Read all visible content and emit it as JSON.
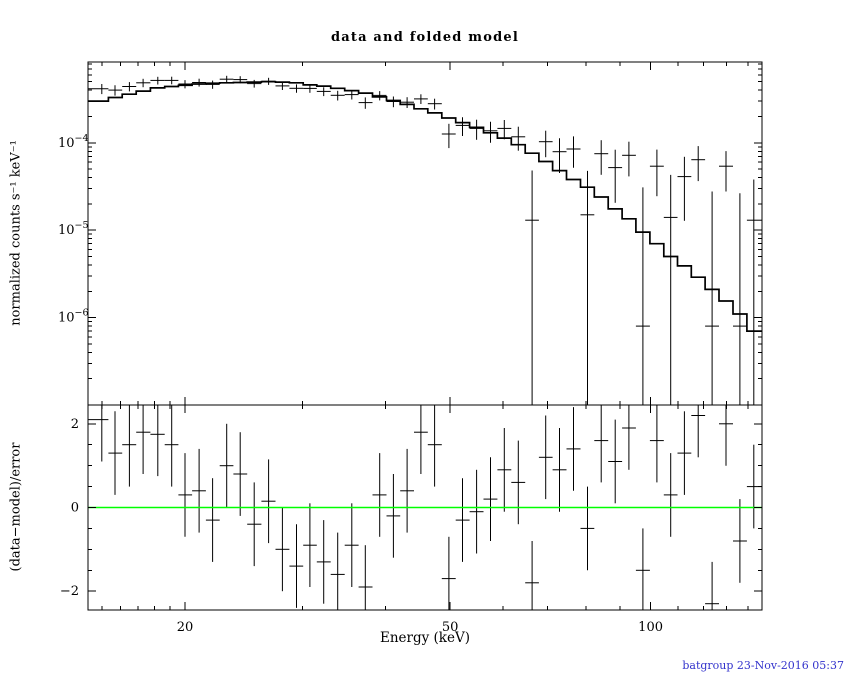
{
  "title": "data and folded model",
  "footer": {
    "timestamp": "batgroup 23-Nov-2016 05:37",
    "color": "#3333cc"
  },
  "colors": {
    "foreground": "#000000",
    "background": "#ffffff",
    "zero_line": "#00ff00"
  },
  "chart_data": {
    "type": "scatter",
    "description": "X-ray counts spectrum with folded model (histogram) and fit residuals",
    "title": "data and folded model",
    "xlabel": "Energy (keV)",
    "x_scale": "log",
    "x_range": [
      14.3,
      147
    ],
    "x_ticks_labeled": [
      20,
      50,
      100
    ],
    "x_ticks_minor": [
      15,
      16,
      17,
      18,
      19,
      20,
      30,
      40,
      50,
      60,
      70,
      80,
      90,
      100,
      110,
      120,
      130,
      140
    ],
    "top_panel": {
      "ylabel": "normalized counts s⁻¹ keV⁻¹",
      "y_scale": "log",
      "y_range": [
        1e-07,
        0.00084
      ],
      "y_decades_labeled": [
        -4,
        -5,
        -6
      ],
      "series": [
        {
          "name": "data",
          "marker": "cross-with-errors",
          "energies_keV": [
            15.0,
            15.7,
            16.5,
            17.3,
            18.2,
            19.1,
            20.0,
            21.0,
            22.0,
            23.1,
            24.2,
            25.4,
            26.7,
            28.0,
            29.4,
            30.8,
            32.3,
            33.9,
            35.6,
            37.3,
            39.2,
            41.1,
            43.1,
            45.2,
            47.4,
            49.8,
            52.2,
            54.8,
            57.5,
            60.3,
            63.3,
            66.4,
            69.6,
            73.0,
            76.6,
            80.4,
            84.3,
            88.5,
            92.8,
            97.4,
            102.2,
            107.2,
            112.4,
            117.9,
            123.7,
            129.8,
            136.2,
            142.9
          ],
          "rates": [
            0.000416,
            0.000401,
            0.000441,
            0.000486,
            0.000517,
            0.000518,
            0.00047,
            0.00049,
            0.000465,
            0.000534,
            0.000529,
            0.000476,
            0.000507,
            0.000448,
            0.00042,
            0.000419,
            0.000387,
            0.000349,
            0.000356,
            0.000288,
            0.000348,
            0.000297,
            0.000291,
            0.000318,
            0.00028,
            0.000126,
            0.000158,
            0.000146,
            0.000137,
            0.000146,
            0.000117,
            1.3e-05,
            0.000103,
            7.9e-05,
            8.5e-05,
            1.5e-05,
            7.5e-05,
            5.2e-05,
            7.2e-05,
            8e-07,
            5.4e-05,
            1.4e-05,
            4.1e-05,
            6.4e-05,
            8e-07,
            5.4e-05,
            8e-07,
            1.3e-05
          ],
          "errors": [
            5.5e-05,
            5.44e-05,
            5.37e-05,
            5.31e-05,
            5.24e-05,
            5.18e-05,
            5.12e-05,
            5.05e-05,
            4.99e-05,
            4.93e-05,
            4.86e-05,
            4.8e-05,
            4.73e-05,
            4.67e-05,
            4.61e-05,
            4.54e-05,
            4.48e-05,
            4.41e-05,
            4.35e-05,
            4.29e-05,
            4.22e-05,
            4.16e-05,
            4.1e-05,
            4.03e-05,
            3.97e-05,
            3.9e-05,
            3.84e-05,
            3.78e-05,
            3.71e-05,
            3.65e-05,
            3.59e-05,
            3.52e-05,
            3.46e-05,
            3.39e-05,
            3.33e-05,
            3.27e-05,
            3.2e-05,
            3.14e-05,
            3.08e-05,
            3.01e-05,
            2.95e-05,
            2.89e-05,
            2.82e-05,
            2.76e-05,
            2.69e-05,
            2.63e-05,
            2.57e-05,
            2.5e-05
          ]
        },
        {
          "name": "folded model",
          "style": "histogram",
          "model_values": [
            0.0003,
            0.00033,
            0.00036,
            0.00039,
            0.000425,
            0.00044,
            0.000455,
            0.00047,
            0.00048,
            0.000485,
            0.00049,
            0.000495,
            0.0005,
            0.000495,
            0.000485,
            0.00046,
            0.000445,
            0.00042,
            0.000395,
            0.00037,
            0.000335,
            0.000305,
            0.000275,
            0.000245,
            0.00022,
            0.000192,
            0.00017,
            0.00015,
            0.00013,
            0.000113,
            9.5e-05,
            7.6e-05,
            6.1e-05,
            4.8e-05,
            3.8e-05,
            3.1e-05,
            2.4e-05,
            1.75e-05,
            1.35e-05,
            9.5e-06,
            7e-06,
            5e-06,
            3.9e-06,
            2.9e-06,
            2.1e-06,
            1.55e-06,
            1.1e-06,
            7e-07
          ]
        }
      ]
    },
    "bottom_panel": {
      "ylabel": "(data−model)/error",
      "y_scale": "linear",
      "y_range": [
        -2.45,
        2.45
      ],
      "y_ticks_labeled": [
        -2,
        0,
        2
      ],
      "y_ticks_minor": [
        -1.5,
        -1,
        -0.5,
        0.5,
        1,
        1.5
      ],
      "residuals": [
        2.1,
        1.3,
        1.5,
        1.8,
        1.75,
        1.5,
        0.3,
        0.4,
        -0.3,
        1.0,
        0.8,
        -0.4,
        0.15,
        -1.0,
        -1.4,
        -0.9,
        -1.3,
        -1.6,
        -0.9,
        -1.9,
        0.3,
        -0.2,
        0.4,
        1.8,
        1.5,
        -1.7,
        -0.3,
        -0.1,
        0.2,
        0.9,
        0.6,
        -1.8,
        1.2,
        0.9,
        1.4,
        -0.5,
        1.6,
        1.1,
        1.9,
        -1.5,
        1.6,
        0.3,
        1.3,
        2.2,
        -2.3,
        2.0,
        -0.8,
        0.5
      ],
      "residual_error": 1,
      "zero_line_color": "#00ff00"
    }
  }
}
